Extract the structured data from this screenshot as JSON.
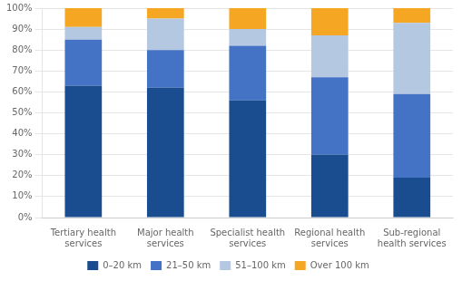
{
  "chart_data": {
    "type": "bar",
    "categories": [
      "Tertiary health\nservices",
      "Major health\nservices",
      "Specialist health\nservices",
      "Regional health\nservices",
      "Sub-regional\nhealth services"
    ],
    "series": [
      {
        "name": "0–20 km",
        "color": "#1a4d8f",
        "values": [
          63,
          62,
          56,
          30,
          19
        ]
      },
      {
        "name": "21–50 km",
        "color": "#4472c4",
        "values": [
          22,
          18,
          26,
          37,
          40
        ]
      },
      {
        "name": "51–100 km",
        "color": "#b4c8e1",
        "values": [
          6,
          15,
          8,
          20,
          34
        ]
      },
      {
        "name": "Over 100 km",
        "color": "#f5a623",
        "values": [
          9,
          5,
          10,
          13,
          7
        ]
      }
    ],
    "ylim": [
      0,
      100
    ],
    "yticks": [
      {
        "value": 0,
        "label": "0%"
      },
      {
        "value": 10,
        "label": "10%"
      },
      {
        "value": 20,
        "label": "20%"
      },
      {
        "value": 30,
        "label": "30%"
      },
      {
        "value": 40,
        "label": "40%"
      },
      {
        "value": 50,
        "label": "50%"
      },
      {
        "value": 60,
        "label": "60%"
      },
      {
        "value": 70,
        "label": "70%"
      },
      {
        "value": 80,
        "label": "80%"
      },
      {
        "value": 90,
        "label": "90%"
      },
      {
        "value": 100,
        "label": "100%"
      }
    ],
    "stacked": true,
    "grid": true,
    "legend": "bottom"
  }
}
